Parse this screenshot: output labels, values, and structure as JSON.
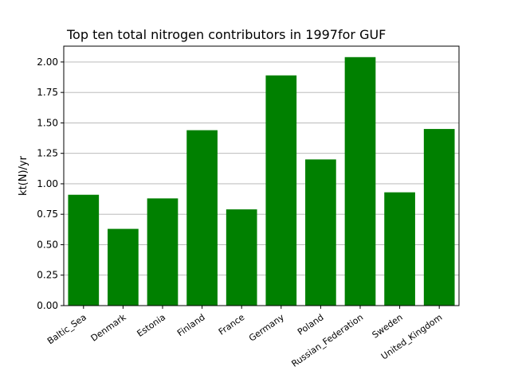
{
  "chart_data": {
    "type": "bar",
    "title": "Top ten total nitrogen contributors in 1997for  GUF",
    "xlabel": "",
    "ylabel": "kt(N)/yr",
    "categories": [
      "Baltic_Sea",
      "Denmark",
      "Estonia",
      "Finland",
      "France",
      "Germany",
      "Poland",
      "Russian_Federation",
      "Sweden",
      "United_Kingdom"
    ],
    "values": [
      0.91,
      0.63,
      0.88,
      1.44,
      0.79,
      1.89,
      1.2,
      2.04,
      0.93,
      1.45
    ],
    "ylim": [
      0,
      2.13
    ],
    "yticks": [
      "0.00",
      "0.25",
      "0.50",
      "0.75",
      "1.00",
      "1.25",
      "1.50",
      "1.75",
      "2.00"
    ],
    "grid": "y",
    "bar_color": "#008000"
  }
}
